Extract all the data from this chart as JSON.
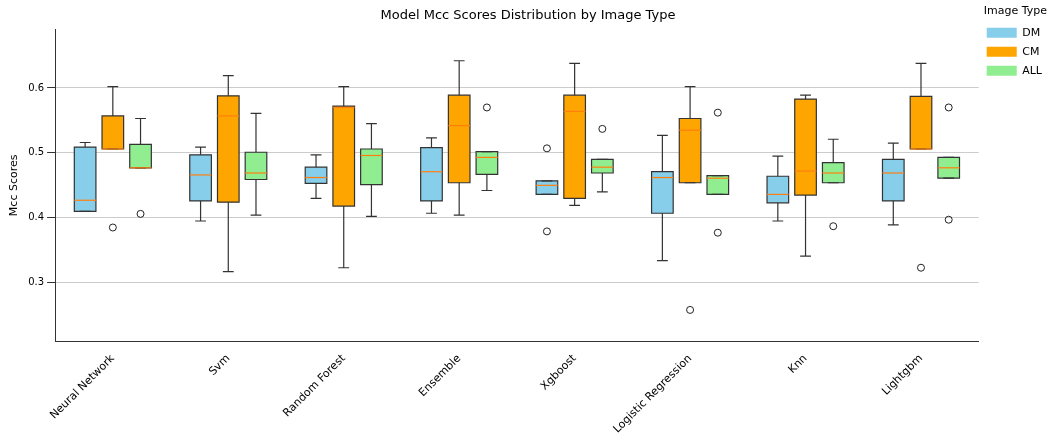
{
  "chart_data": {
    "type": "box",
    "title": "Model Mcc Scores Distribution by Image Type",
    "ylabel": "Mcc Scores",
    "legend_title": "Image Type",
    "legend": "top right",
    "grid": "y",
    "categories": [
      "Neural Network",
      "Svm",
      "Random Forest",
      "Ensemble",
      "Xgboost",
      "Logistic Regression",
      "Knn",
      "Lightgbm"
    ],
    "ylim": [
      0.21,
      0.69
    ],
    "yticks": [
      0.3,
      0.4,
      0.5,
      0.6
    ],
    "series": [
      {
        "name": "DM",
        "color": "#87ceeb",
        "boxes": [
          {
            "low": 0.41,
            "q1": 0.41,
            "median": 0.427,
            "q3": 0.509,
            "high": 0.516
          },
          {
            "low": 0.395,
            "q1": 0.426,
            "median": 0.466,
            "q3": 0.497,
            "high": 0.509
          },
          {
            "low": 0.43,
            "q1": 0.453,
            "median": 0.462,
            "q3": 0.478,
            "high": 0.497
          },
          {
            "low": 0.407,
            "q1": 0.426,
            "median": 0.471,
            "q3": 0.508,
            "high": 0.523
          },
          {
            "low": 0.436,
            "q1": 0.436,
            "median": 0.45,
            "q3": 0.457,
            "high": 0.457,
            "outliers": [
              0.507,
              0.379
            ]
          },
          {
            "low": 0.334,
            "q1": 0.407,
            "median": 0.462,
            "q3": 0.471,
            "high": 0.527
          },
          {
            "low": 0.395,
            "q1": 0.423,
            "median": 0.436,
            "q3": 0.464,
            "high": 0.495
          },
          {
            "low": 0.389,
            "q1": 0.426,
            "median": 0.469,
            "q3": 0.49,
            "high": 0.515
          }
        ]
      },
      {
        "name": "CM",
        "color": "#ffa500",
        "boxes": [
          {
            "low": 0.506,
            "q1": 0.506,
            "median": 0.506,
            "q3": 0.557,
            "high": 0.602,
            "outliers": [
              0.385
            ]
          },
          {
            "low": 0.317,
            "q1": 0.424,
            "median": 0.557,
            "q3": 0.588,
            "high": 0.619
          },
          {
            "low": 0.323,
            "q1": 0.418,
            "median": 0.57,
            "q3": 0.572,
            "high": 0.602
          },
          {
            "low": 0.404,
            "q1": 0.454,
            "median": 0.542,
            "q3": 0.589,
            "high": 0.642
          },
          {
            "low": 0.419,
            "q1": 0.43,
            "median": 0.564,
            "q3": 0.589,
            "high": 0.638
          },
          {
            "low": 0.454,
            "q1": 0.454,
            "median": 0.535,
            "q3": 0.553,
            "high": 0.602,
            "outliers": [
              0.258
            ]
          },
          {
            "low": 0.341,
            "q1": 0.435,
            "median": 0.472,
            "q3": 0.583,
            "high": 0.589
          },
          {
            "low": 0.506,
            "q1": 0.506,
            "median": 0.506,
            "q3": 0.587,
            "high": 0.638,
            "outliers": [
              0.323
            ]
          }
        ]
      },
      {
        "name": "ALL",
        "color": "#90ee90",
        "boxes": [
          {
            "low": 0.477,
            "q1": 0.477,
            "median": 0.477,
            "q3": 0.513,
            "high": 0.553,
            "outliers": [
              0.406
            ]
          },
          {
            "low": 0.404,
            "q1": 0.459,
            "median": 0.469,
            "q3": 0.501,
            "high": 0.561
          },
          {
            "low": 0.402,
            "q1": 0.451,
            "median": 0.496,
            "q3": 0.506,
            "high": 0.545
          },
          {
            "low": 0.442,
            "q1": 0.467,
            "median": 0.493,
            "q3": 0.502,
            "high": 0.502,
            "outliers": [
              0.57
            ]
          },
          {
            "low": 0.44,
            "q1": 0.469,
            "median": 0.478,
            "q3": 0.49,
            "high": 0.49,
            "outliers": [
              0.537
            ]
          },
          {
            "low": 0.436,
            "q1": 0.436,
            "median": 0.461,
            "q3": 0.465,
            "high": 0.465,
            "outliers": [
              0.562,
              0.377
            ]
          },
          {
            "low": 0.454,
            "q1": 0.454,
            "median": 0.469,
            "q3": 0.485,
            "high": 0.521,
            "outliers": [
              0.387
            ]
          },
          {
            "low": 0.461,
            "q1": 0.461,
            "median": 0.477,
            "q3": 0.493,
            "high": 0.493,
            "outliers": [
              0.57,
              0.397
            ]
          }
        ]
      }
    ]
  }
}
